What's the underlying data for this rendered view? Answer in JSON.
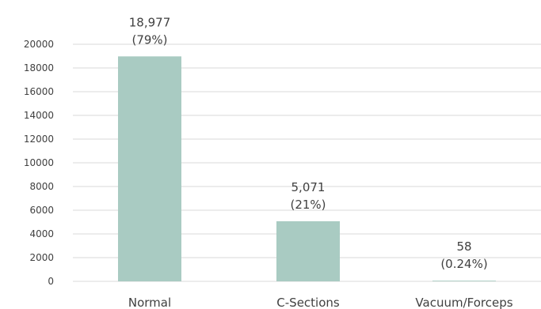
{
  "chart_data": {
    "type": "bar",
    "title": "",
    "categories": [
      "Normal",
      "C-Sections",
      "Vacuum/Forceps"
    ],
    "values": [
      18977,
      5071,
      58
    ],
    "data_labels": [
      {
        "value": "18,977",
        "percent": "(79%)"
      },
      {
        "value": "5,071",
        "percent": "(21%)"
      },
      {
        "value": "58",
        "percent": "(0.24%)"
      }
    ],
    "ylim": [
      0,
      20000
    ],
    "yticks": [
      0,
      2000,
      4000,
      6000,
      8000,
      10000,
      12000,
      14000,
      16000,
      18000,
      20000
    ],
    "grid": true,
    "bar_color": "#a9cbc2",
    "grid_color": "#d9d9d9"
  }
}
